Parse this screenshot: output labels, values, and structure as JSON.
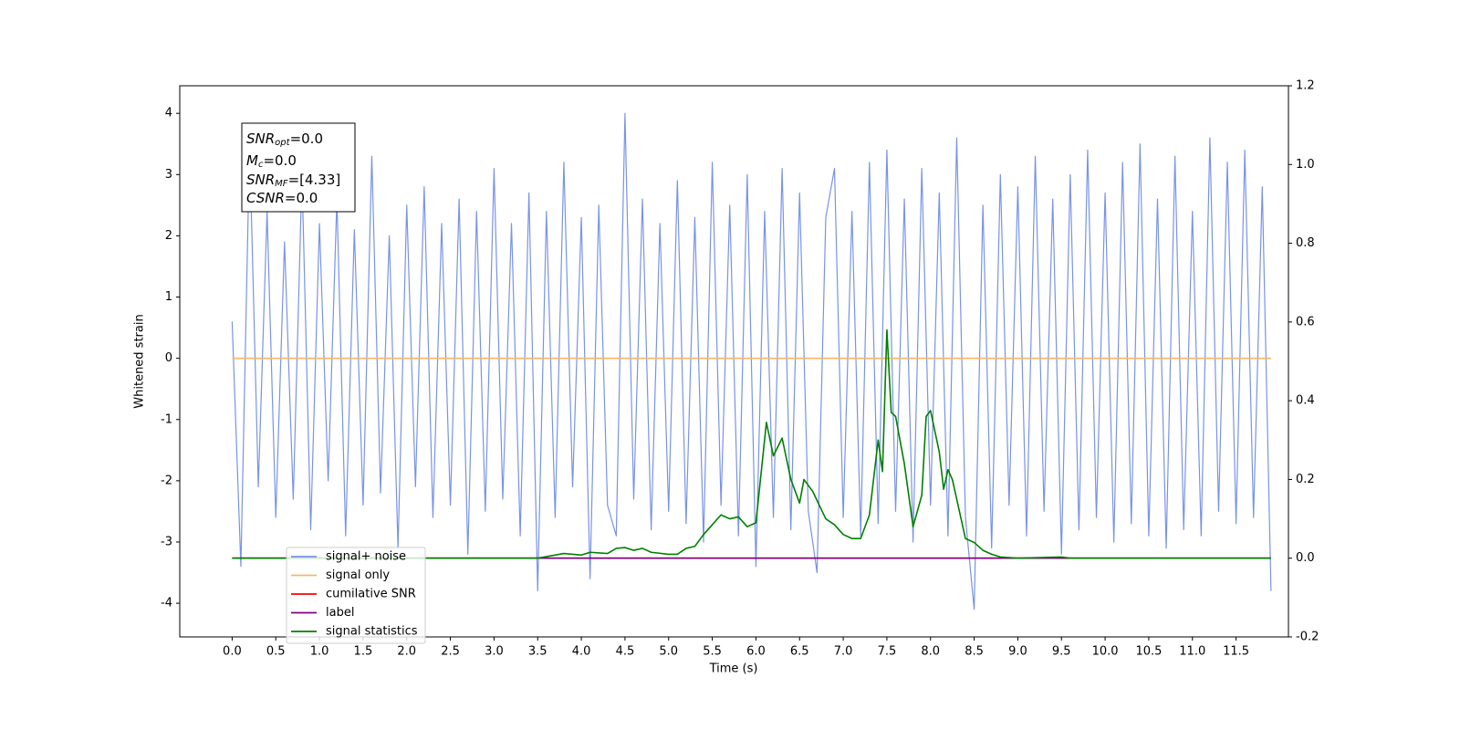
{
  "chart_data": {
    "type": "line",
    "xlabel": "Time (s)",
    "ylabel": "Whitened strain",
    "x": [
      0,
      0.1,
      0.2,
      0.3,
      0.4,
      0.5,
      0.6,
      0.7,
      0.8,
      0.9,
      1,
      1.1,
      1.2,
      1.3,
      1.4,
      1.5,
      1.6,
      1.7,
      1.8,
      1.9,
      2,
      2.1,
      2.2,
      2.3,
      2.4,
      2.5,
      2.6,
      2.7,
      2.8,
      2.9,
      3,
      3.1,
      3.2,
      3.3,
      3.4,
      3.5,
      3.6,
      3.7,
      3.8,
      3.9,
      4,
      4.1,
      4.2,
      4.3,
      4.4,
      4.5,
      4.6,
      4.7,
      4.8,
      4.9,
      5,
      5.1,
      5.2,
      5.3,
      5.4,
      5.5,
      5.6,
      5.7,
      5.8,
      5.9,
      6,
      6.1,
      6.2,
      6.3,
      6.4,
      6.5,
      6.6,
      6.7,
      6.8,
      6.9,
      7,
      7.1,
      7.2,
      7.3,
      7.4,
      7.5,
      7.6,
      7.7,
      7.8,
      7.9,
      8,
      8.1,
      8.2,
      8.3,
      8.4,
      8.5,
      8.6,
      8.7,
      8.8,
      8.9,
      9,
      9.1,
      9.2,
      9.3,
      9.4,
      9.5,
      9.6,
      9.7,
      9.8,
      9.9,
      10,
      10.1,
      10.2,
      10.3,
      10.4,
      10.5,
      10.6,
      10.7,
      10.8,
      10.9,
      11,
      11.1,
      11.2,
      11.3,
      11.4,
      11.5,
      11.6,
      11.7,
      11.8,
      11.9
    ],
    "series": [
      {
        "name": "signal+ noise",
        "color": "#7893e8",
        "values": [
          0.6,
          -3.4,
          3.5,
          -2.1,
          2.4,
          -2.6,
          1.9,
          -2.3,
          3.0,
          -2.8,
          2.2,
          -2.0,
          2.6,
          -2.9,
          2.1,
          -2.4,
          3.3,
          -2.2,
          2.0,
          -3.1,
          2.5,
          -2.1,
          2.8,
          -2.6,
          2.2,
          -2.4,
          2.6,
          -3.2,
          2.4,
          -2.5,
          3.1,
          -2.3,
          2.2,
          -2.9,
          2.7,
          -3.8,
          2.4,
          -2.6,
          3.2,
          -2.1,
          2.3,
          -3.6,
          2.5,
          -2.4,
          -2.9,
          4.0,
          -2.3,
          2.6,
          -2.8,
          2.2,
          -2.5,
          2.9,
          -2.7,
          2.3,
          -3.0,
          3.2,
          -2.4,
          2.5,
          -2.9,
          3.0,
          -3.4,
          2.4,
          -2.6,
          3.1,
          -2.8,
          2.7,
          -2.5,
          -3.5,
          2.3,
          3.1,
          -2.6,
          2.4,
          -2.9,
          3.2,
          -2.7,
          3.4,
          -2.5,
          2.6,
          -3.0,
          3.1,
          -2.4,
          2.7,
          -2.9,
          3.6,
          -2.6,
          -4.1,
          2.5,
          -3.1,
          3.0,
          -2.4,
          2.8,
          -2.9,
          3.3,
          -2.5,
          2.6,
          -3.2,
          3.0,
          -2.8,
          3.4,
          -2.6,
          2.7,
          -3.0,
          3.2,
          -2.7,
          3.5,
          -2.9,
          2.6,
          -3.1,
          3.3,
          -2.8,
          2.4,
          -2.9,
          3.6,
          -2.5,
          3.2,
          -2.7,
          3.4,
          -2.6,
          2.8,
          -3.8
        ]
      },
      {
        "name": "signal only",
        "color": "#f5b66b",
        "x": [
          0,
          11.9
        ],
        "values": [
          0,
          0
        ]
      },
      {
        "name": "cumilative SNR",
        "color": "#ff0000",
        "axis": "y2",
        "x": [
          0,
          11.9
        ],
        "values": [
          0,
          0
        ]
      },
      {
        "name": "label",
        "color": "#800080",
        "axis": "y2",
        "x": [
          0,
          11.9
        ],
        "values": [
          0,
          0
        ]
      },
      {
        "name": "signal statistics",
        "color": "#008000",
        "axis": "y2",
        "x": [
          0,
          3.5,
          3.8,
          4.0,
          4.1,
          4.3,
          4.4,
          4.5,
          4.6,
          4.7,
          4.8,
          5.0,
          5.1,
          5.2,
          5.3,
          5.4,
          5.5,
          5.6,
          5.7,
          5.8,
          5.9,
          6.0,
          6.12,
          6.2,
          6.3,
          6.4,
          6.5,
          6.55,
          6.65,
          6.8,
          6.9,
          7.0,
          7.1,
          7.2,
          7.3,
          7.4,
          7.45,
          7.5,
          7.55,
          7.6,
          7.7,
          7.8,
          7.9,
          7.95,
          8.0,
          8.1,
          8.15,
          8.2,
          8.25,
          8.3,
          8.4,
          8.5,
          8.6,
          8.7,
          8.8,
          9.0,
          9.5,
          9.6,
          11.9
        ],
        "values": [
          0,
          0,
          0.012,
          0.008,
          0.015,
          0.012,
          0.025,
          0.027,
          0.02,
          0.025,
          0.015,
          0.01,
          0.01,
          0.025,
          0.03,
          0.06,
          0.085,
          0.11,
          0.1,
          0.105,
          0.08,
          0.09,
          0.345,
          0.26,
          0.305,
          0.2,
          0.14,
          0.2,
          0.17,
          0.1,
          0.085,
          0.06,
          0.05,
          0.05,
          0.11,
          0.3,
          0.22,
          0.58,
          0.37,
          0.36,
          0.24,
          0.08,
          0.16,
          0.36,
          0.375,
          0.27,
          0.175,
          0.225,
          0.2,
          0.15,
          0.05,
          0.04,
          0.02,
          0.01,
          0.003,
          0,
          0.003,
          0,
          0
        ]
      }
    ],
    "xlim": [
      -0.6,
      12.1
    ],
    "xticks": [
      {
        "value": 0,
        "label": "0.0"
      },
      0.5,
      {
        "value": 1,
        "label": "1.0"
      },
      1.5,
      {
        "value": 2,
        "label": "2.0"
      },
      2.5,
      {
        "value": 3,
        "label": "3.0"
      },
      3.5,
      {
        "value": 4,
        "label": "4.0"
      },
      4.5,
      {
        "value": 5,
        "label": "5.0"
      },
      5.5,
      {
        "value": 6,
        "label": "6.0"
      },
      6.5,
      {
        "value": 7,
        "label": "7.0"
      },
      7.5,
      {
        "value": 8,
        "label": "8.0"
      },
      8.5,
      {
        "value": 9,
        "label": "9.0"
      },
      9.5,
      {
        "value": 10,
        "label": "10.0"
      },
      10.5,
      {
        "value": 11,
        "label": "11.0"
      },
      11.5
    ],
    "ylim": [
      -4.55,
      4.45
    ],
    "yticks": [
      -4,
      -3,
      -2,
      -1,
      0,
      1,
      2,
      3,
      4
    ],
    "y2lim": [
      -0.2,
      1.2
    ],
    "y2ticks": [
      -0.2,
      {
        "value": 0,
        "label": "0.0"
      },
      0.2,
      0.4,
      0.6,
      0.8,
      {
        "value": 1,
        "label": "1.0"
      },
      1.2
    ],
    "legend": "lower left",
    "annotation": [
      {
        "main": "SNR",
        "sub": "opt",
        "rest": "=0.0"
      },
      {
        "main": "M",
        "sub": "c",
        "rest": "=0.0"
      },
      {
        "main": "SNR",
        "sub": "MF",
        "rest": "=[4.33]"
      },
      {
        "main": "CSNR",
        "rest": "=0.0"
      }
    ]
  }
}
